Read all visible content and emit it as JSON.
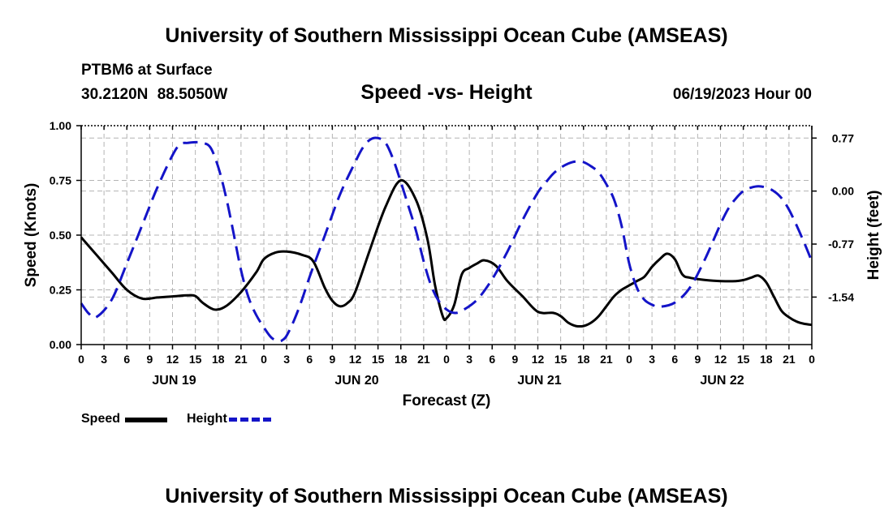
{
  "header": {
    "title": "University of Southern Mississippi Ocean Cube (AMSEAS)",
    "station": "PTBM6 at Surface",
    "lat": "30.2120N",
    "lon": "88.5050W",
    "subtitle": "Speed -vs- Height",
    "datetime": "06/19/2023 Hour 00"
  },
  "footer": {
    "title": "University of Southern Mississippi Ocean Cube (AMSEAS)"
  },
  "legend": {
    "speed_label": "Speed",
    "height_label": "Height"
  },
  "colors": {
    "speed": "#000000",
    "height": "#1414c8",
    "grid": "#b4b4b4"
  },
  "chart_data": {
    "type": "line",
    "xlabel": "Forecast (Z)",
    "ylabel_left": "Speed (Knots)",
    "ylabel_right": "Height (feet)",
    "x_range_hours": [
      0,
      96
    ],
    "x_tick_labels": [
      "0",
      "3",
      "6",
      "9",
      "12",
      "15",
      "18",
      "21",
      "0",
      "3",
      "6",
      "9",
      "12",
      "15",
      "18",
      "21",
      "0",
      "3",
      "6",
      "9",
      "12",
      "15",
      "18",
      "21",
      "0",
      "3",
      "6",
      "9",
      "12",
      "15",
      "18",
      "21",
      "0"
    ],
    "day_labels": [
      {
        "label": "JUN 19",
        "hour": 12
      },
      {
        "label": "JUN 20",
        "hour": 36
      },
      {
        "label": "JUN 21",
        "hour": 60
      },
      {
        "label": "JUN 22",
        "hour": 84
      }
    ],
    "ylim_left": [
      0,
      1
    ],
    "y_ticks_left": [
      "0.00",
      "0.25",
      "0.50",
      "0.75",
      "1.00"
    ],
    "y_tick_values_left": [
      0,
      0.25,
      0.5,
      0.75,
      1.0
    ],
    "ylim_right": [
      -2.23,
      0.95
    ],
    "y_ticks_right": [
      "-1.54",
      "-0.77",
      "0.00",
      "0.77"
    ],
    "y_tick_values_right": [
      -1.54,
      -0.77,
      0.0,
      0.77
    ],
    "grid": true,
    "series": [
      {
        "name": "Speed",
        "axis": "left",
        "style": "solid",
        "x": [
          0,
          2,
          4,
          6,
          8,
          10,
          12,
          14,
          15,
          16,
          17.5,
          19,
          21,
          23,
          24,
          25.5,
          27,
          29,
          30.5,
          32,
          33,
          34,
          35,
          36,
          38,
          40,
          42,
          44,
          45.5,
          46.5,
          47.5,
          48,
          49,
          50,
          51,
          52,
          53,
          54.5,
          56,
          58,
          60,
          62,
          63,
          64,
          65,
          66,
          67,
          68,
          69,
          70,
          71,
          72,
          73,
          74,
          75,
          76,
          77,
          78,
          79,
          80,
          82,
          84,
          86,
          87,
          88,
          89,
          90,
          91,
          92,
          93,
          94,
          95,
          96
        ],
        "values": [
          0.49,
          0.41,
          0.33,
          0.25,
          0.21,
          0.215,
          0.22,
          0.225,
          0.222,
          0.19,
          0.16,
          0.175,
          0.24,
          0.33,
          0.39,
          0.42,
          0.425,
          0.41,
          0.38,
          0.26,
          0.2,
          0.175,
          0.19,
          0.24,
          0.44,
          0.63,
          0.75,
          0.66,
          0.48,
          0.27,
          0.13,
          0.12,
          0.18,
          0.32,
          0.35,
          0.37,
          0.385,
          0.36,
          0.29,
          0.22,
          0.15,
          0.145,
          0.13,
          0.1,
          0.085,
          0.085,
          0.1,
          0.13,
          0.175,
          0.22,
          0.25,
          0.27,
          0.29,
          0.31,
          0.355,
          0.39,
          0.415,
          0.39,
          0.32,
          0.305,
          0.295,
          0.29,
          0.29,
          0.295,
          0.305,
          0.315,
          0.285,
          0.22,
          0.155,
          0.125,
          0.105,
          0.095,
          0.09
        ]
      },
      {
        "name": "Height",
        "axis": "right",
        "style": "dashed",
        "x": [
          0,
          1,
          2,
          4,
          6,
          8,
          10,
          12,
          13,
          14,
          15,
          16,
          17,
          18,
          19,
          20,
          21,
          22,
          23,
          24,
          25,
          26,
          26.5,
          27,
          28,
          29,
          30,
          32,
          34,
          36,
          37,
          38,
          39,
          40,
          41,
          42,
          43,
          44,
          45,
          46,
          47,
          48,
          49,
          50,
          52,
          54,
          56,
          58,
          60,
          61,
          62,
          63,
          64,
          65,
          66,
          67,
          68,
          69,
          70,
          71,
          72,
          73,
          74,
          75,
          76,
          78,
          80,
          82,
          84,
          85,
          86,
          87,
          88,
          89,
          90,
          91,
          92,
          93,
          94,
          95,
          96
        ],
        "values": [
          -1.63,
          -1.78,
          -1.83,
          -1.58,
          -1.05,
          -0.5,
          0.05,
          0.52,
          0.68,
          0.7,
          0.71,
          0.7,
          0.63,
          0.35,
          -0.07,
          -0.6,
          -1.15,
          -1.55,
          -1.8,
          -1.98,
          -2.13,
          -2.18,
          -2.16,
          -2.1,
          -1.87,
          -1.58,
          -1.25,
          -0.65,
          -0.05,
          0.42,
          0.63,
          0.75,
          0.77,
          0.7,
          0.46,
          0.13,
          -0.22,
          -0.58,
          -1.02,
          -1.38,
          -1.6,
          -1.72,
          -1.77,
          -1.74,
          -1.58,
          -1.28,
          -0.88,
          -0.42,
          -0.02,
          0.12,
          0.25,
          0.34,
          0.4,
          0.43,
          0.42,
          0.36,
          0.27,
          0.1,
          -0.12,
          -0.5,
          -1.05,
          -1.4,
          -1.58,
          -1.65,
          -1.68,
          -1.62,
          -1.4,
          -0.98,
          -0.48,
          -0.26,
          -0.11,
          0.0,
          0.05,
          0.07,
          0.05,
          0.0,
          -0.1,
          -0.27,
          -0.5,
          -0.75,
          -1.02
        ]
      }
    ]
  }
}
